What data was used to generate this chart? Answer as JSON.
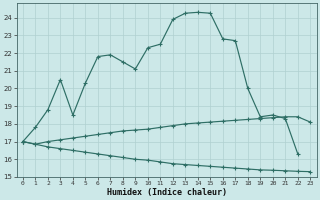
{
  "xlabel": "Humidex (Indice chaleur)",
  "bg_color": "#cce8e8",
  "line_color": "#2e6e65",
  "grid_color": "#b0d0d0",
  "xlim": [
    -0.5,
    23.5
  ],
  "ylim": [
    15,
    24.8
  ],
  "yticks": [
    15,
    16,
    17,
    18,
    19,
    20,
    21,
    22,
    23,
    24
  ],
  "xticks": [
    0,
    1,
    2,
    3,
    4,
    5,
    6,
    7,
    8,
    9,
    10,
    11,
    12,
    13,
    14,
    15,
    16,
    17,
    18,
    19,
    20,
    21,
    22,
    23
  ],
  "curve1_y": [
    17.0,
    17.8,
    18.8,
    20.5,
    18.5,
    20.3,
    21.8,
    21.9,
    21.5,
    21.1,
    22.3,
    22.5,
    23.9,
    24.25,
    24.3,
    24.25,
    22.8,
    22.7,
    20.0,
    18.4,
    18.5,
    18.3,
    16.3,
    null
  ],
  "curve2_y": [
    17.0,
    16.85,
    17.0,
    17.1,
    17.2,
    17.3,
    17.4,
    17.5,
    17.6,
    17.65,
    17.7,
    17.8,
    17.9,
    18.0,
    18.05,
    18.1,
    18.15,
    18.2,
    18.25,
    18.3,
    18.35,
    18.4,
    18.4,
    18.1
  ],
  "curve3_y": [
    17.0,
    16.85,
    16.7,
    16.6,
    16.5,
    16.4,
    16.3,
    16.2,
    16.1,
    16.0,
    15.95,
    15.85,
    15.75,
    15.7,
    15.65,
    15.6,
    15.55,
    15.5,
    15.45,
    15.4,
    15.38,
    15.35,
    15.32,
    15.3
  ]
}
